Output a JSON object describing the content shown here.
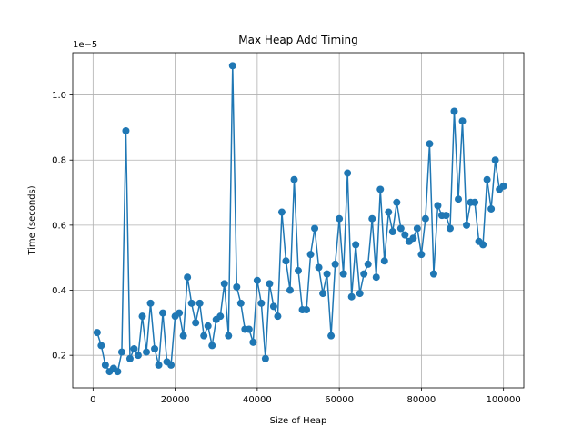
{
  "chart_data": {
    "type": "line",
    "title": "Max Heap Add Timing",
    "xlabel": "Size of Heap",
    "ylabel": "Time (seconds)",
    "y_offset_label": "1e−5",
    "y_scale": 1e-05,
    "xlim": [
      -4950,
      104950
    ],
    "ylim": [
      0.1,
      1.13
    ],
    "x_ticks": [
      0,
      20000,
      40000,
      60000,
      80000,
      100000
    ],
    "y_ticks": [
      0.2,
      0.4,
      0.6,
      0.8,
      1.0
    ],
    "y_tick_labels": [
      "0.2",
      "0.4",
      "0.6",
      "0.8",
      "1.0"
    ],
    "grid": true,
    "line_color": "#1f77b4",
    "marker": "circle",
    "series": [
      {
        "x": [
          1000,
          2000,
          3000,
          4000,
          5000,
          6000,
          7000,
          8000,
          9000,
          10000,
          11000,
          12000,
          13000,
          14000,
          15000,
          16000,
          17000,
          18000,
          19000,
          20000,
          21000,
          22000,
          23000,
          24000,
          25000,
          26000,
          27000,
          28000,
          29000,
          30000,
          31000,
          32000,
          33000,
          34000,
          35000,
          36000,
          37000,
          38000,
          39000,
          40000,
          41000,
          42000,
          43000,
          44000,
          45000,
          46000,
          47000,
          48000,
          49000,
          50000,
          51000,
          52000,
          53000,
          54000,
          55000,
          56000,
          57000,
          58000,
          59000,
          60000,
          61000,
          62000,
          63000,
          64000,
          65000,
          66000,
          67000,
          68000,
          69000,
          70000,
          71000,
          72000,
          73000,
          74000,
          75000,
          76000,
          77000,
          78000,
          79000,
          80000,
          81000,
          82000,
          83000,
          84000,
          85000,
          86000,
          87000,
          88000,
          89000,
          90000,
          91000,
          92000,
          93000,
          94000,
          95000,
          96000,
          97000,
          98000,
          99000,
          100000
        ],
        "y": [
          0.27,
          0.23,
          0.17,
          0.15,
          0.16,
          0.15,
          0.21,
          0.89,
          0.19,
          0.22,
          0.2,
          0.32,
          0.21,
          0.36,
          0.22,
          0.17,
          0.33,
          0.18,
          0.17,
          0.32,
          0.33,
          0.26,
          0.44,
          0.36,
          0.3,
          0.36,
          0.26,
          0.29,
          0.23,
          0.31,
          0.32,
          0.42,
          0.26,
          1.09,
          0.41,
          0.36,
          0.28,
          0.28,
          0.24,
          0.43,
          0.36,
          0.19,
          0.42,
          0.35,
          0.32,
          0.64,
          0.49,
          0.4,
          0.74,
          0.46,
          0.34,
          0.34,
          0.51,
          0.59,
          0.47,
          0.39,
          0.45,
          0.26,
          0.48,
          0.62,
          0.45,
          0.76,
          0.38,
          0.54,
          0.39,
          0.45,
          0.48,
          0.62,
          0.44,
          0.71,
          0.49,
          0.64,
          0.58,
          0.67,
          0.59,
          0.57,
          0.55,
          0.56,
          0.59,
          0.51,
          0.62,
          0.85,
          0.45,
          0.66,
          0.63,
          0.63,
          0.59,
          0.95,
          0.68,
          0.92,
          0.6,
          0.67,
          0.67,
          0.55,
          0.54,
          0.74,
          0.65,
          0.8,
          0.71,
          0.72
        ]
      }
    ]
  }
}
